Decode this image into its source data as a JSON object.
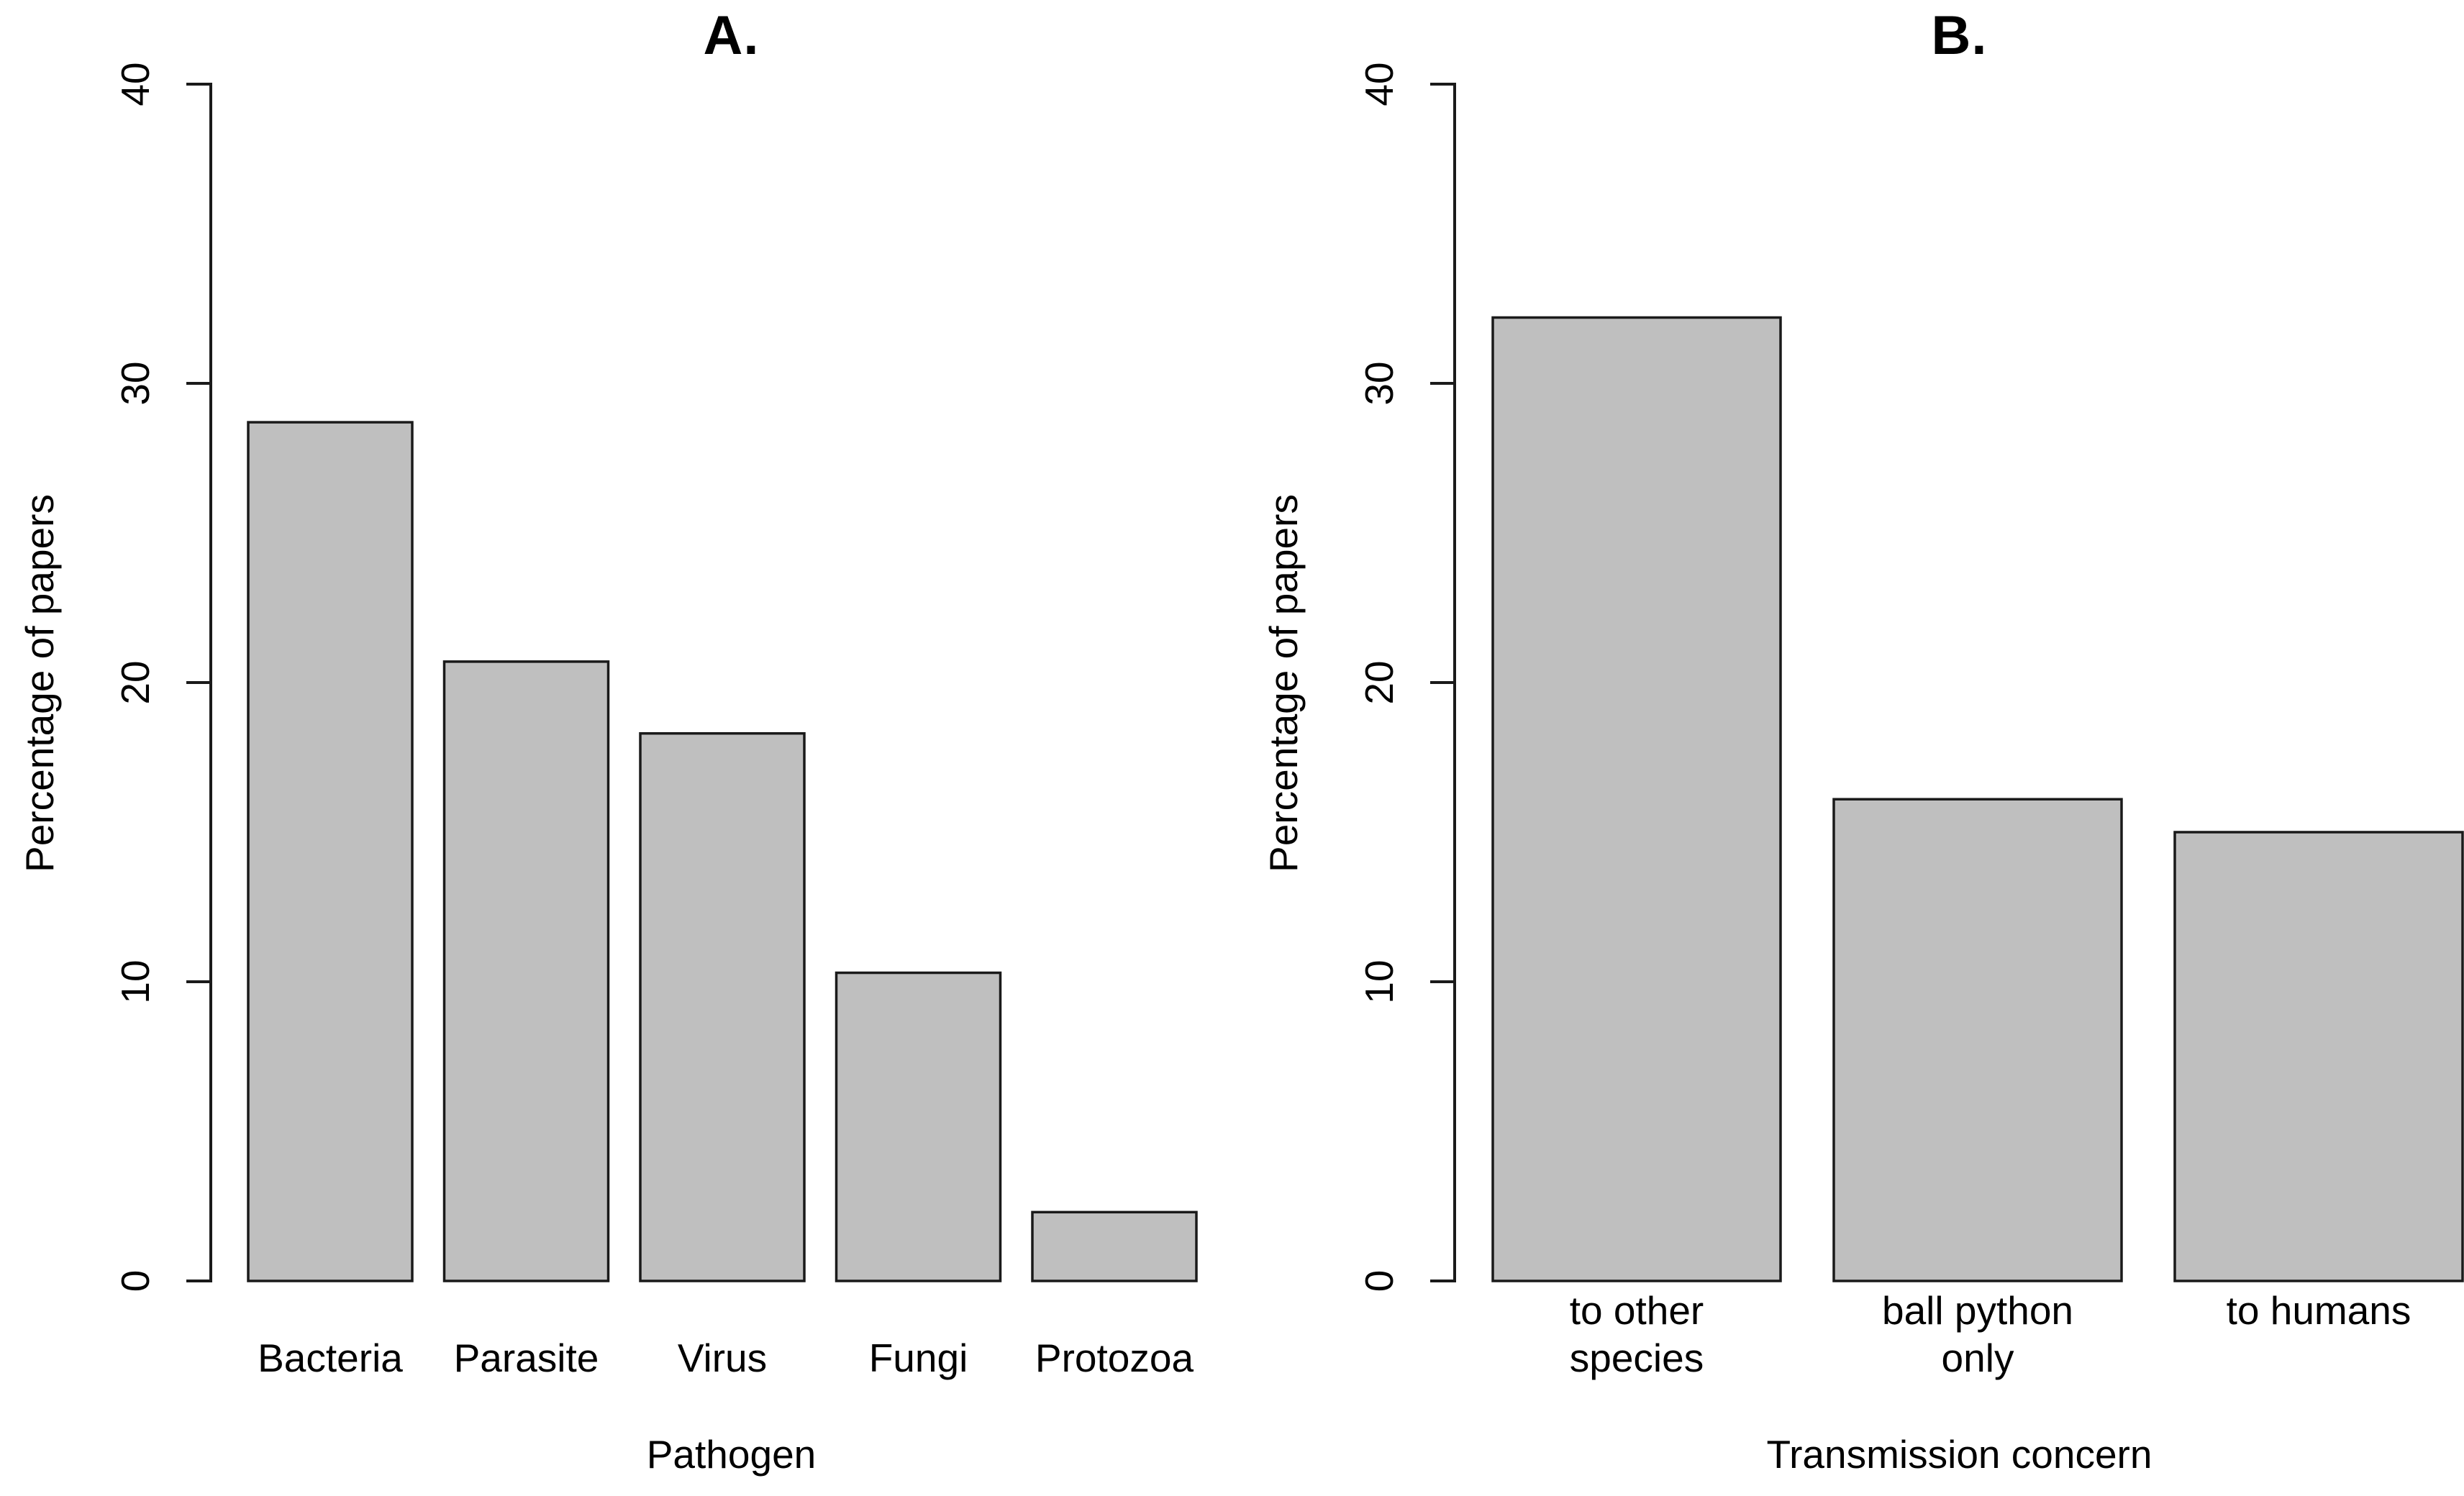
{
  "figure": {
    "background": "#ffffff",
    "bar_fill": "#bfbfbf",
    "bar_stroke": "#1a1a1a",
    "axis_stroke": "#1a1a1a",
    "text_color": "#000000"
  },
  "chart_data": [
    {
      "type": "bar",
      "title": "A.",
      "xlabel": "Pathogen",
      "ylabel": "Percentage of papers",
      "ylim": [
        0,
        40
      ],
      "yticks": [
        0,
        10,
        20,
        30,
        40
      ],
      "categories": [
        "Bacteria",
        "Parasite",
        "Virus",
        "Fungi",
        "Protozoa"
      ],
      "category_lines": [
        [
          "Bacteria"
        ],
        [
          "Parasite"
        ],
        [
          "Virus"
        ],
        [
          "Fungi"
        ],
        [
          "Protozoa"
        ]
      ],
      "values": [
        28.7,
        20.7,
        18.3,
        10.3,
        2.3
      ],
      "grid": false,
      "legend": false,
      "bar_color": "#bfbfbf"
    },
    {
      "type": "bar",
      "title": "B.",
      "xlabel": "Transmission concern",
      "ylabel": "Percentage of papers",
      "ylim": [
        0,
        40
      ],
      "yticks": [
        0,
        10,
        20,
        30,
        40
      ],
      "categories": [
        "to other species",
        "ball python only",
        "to humans"
      ],
      "category_lines": [
        [
          "to other",
          "species"
        ],
        [
          "ball python",
          "only"
        ],
        [
          "",
          "to humans"
        ]
      ],
      "values": [
        32.2,
        16.1,
        15.0
      ],
      "grid": false,
      "legend": false,
      "bar_color": "#bfbfbf"
    }
  ]
}
